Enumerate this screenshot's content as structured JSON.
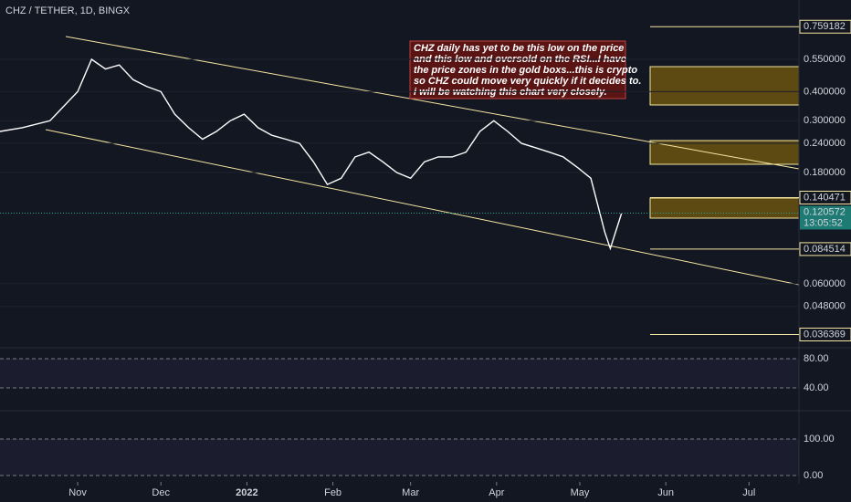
{
  "chart_data": {
    "type": "line",
    "title": "CHZ / TETHER, 1D, BINGX",
    "log_scale": true,
    "color": "#ffffff",
    "x": [
      -28,
      -20,
      -10,
      0,
      5,
      10,
      15,
      20,
      25,
      30,
      35,
      40,
      45,
      50,
      55,
      60,
      65,
      70,
      75,
      80,
      85,
      90,
      95,
      100,
      105,
      110,
      115,
      120,
      125,
      130,
      135,
      140,
      145,
      150,
      155,
      160,
      165,
      170,
      175,
      180,
      185,
      190,
      192,
      196
    ],
    "values": [
      0.27,
      0.28,
      0.3,
      0.4,
      0.55,
      0.5,
      0.52,
      0.45,
      0.42,
      0.4,
      0.32,
      0.28,
      0.25,
      0.27,
      0.3,
      0.32,
      0.28,
      0.26,
      0.25,
      0.24,
      0.2,
      0.16,
      0.17,
      0.21,
      0.22,
      0.2,
      0.18,
      0.17,
      0.2,
      0.21,
      0.21,
      0.22,
      0.27,
      0.3,
      0.27,
      0.24,
      0.23,
      0.22,
      0.21,
      0.19,
      0.17,
      0.1,
      0.085,
      0.12
    ],
    "xlim": [
      -28,
      260
    ],
    "xticks": [
      {
        "value": 0,
        "label": "Nov"
      },
      {
        "value": 30,
        "label": "Dec"
      },
      {
        "value": 61,
        "label": "2022"
      },
      {
        "value": 92,
        "label": "Feb"
      },
      {
        "value": 120,
        "label": "Mar"
      },
      {
        "value": 151,
        "label": "Apr"
      },
      {
        "value": 181,
        "label": "May"
      },
      {
        "value": 212,
        "label": "Jun"
      },
      {
        "value": 242,
        "label": "Jul"
      }
    ],
    "ylim": [
      0.0322,
      0.988
    ],
    "yticks": [
      {
        "value": 0.55,
        "label": "0.550000"
      },
      {
        "value": 0.4,
        "label": "0.400000"
      },
      {
        "value": 0.3,
        "label": "0.300000"
      },
      {
        "value": 0.24,
        "label": "0.240000"
      },
      {
        "value": 0.18,
        "label": "0.180000"
      },
      {
        "value": 0.06,
        "label": "0.060000"
      },
      {
        "value": 0.048,
        "label": "0.048000"
      }
    ],
    "levels": [
      {
        "value": 0.759182,
        "label": "0.759182"
      },
      {
        "value": 0.140471,
        "label": "0.140471"
      },
      {
        "value": 0.084514,
        "label": "0.084514"
      },
      {
        "value": 0.036369,
        "label": "0.036369"
      }
    ],
    "current": {
      "value": 0.120572,
      "label": "0.120572",
      "timer": "13:05:52"
    },
    "annotation": [
      "CHZ daily has yet to be this low on the price",
      "and this low and oversold on the RSI...I have",
      "the price zones in the gold boxs...this is crypto",
      "so CHZ could move very quickly if it decides to.",
      "i will be watching this chart very closely."
    ],
    "rsi_panel": {
      "ylim": [
        15,
        92.5
      ],
      "yticks": [
        {
          "value": 80,
          "label": "80.00"
        },
        {
          "value": 40,
          "label": "40.00"
        }
      ]
    },
    "stoch_panel": {
      "ylim": [
        -22.5,
        165
      ],
      "yticks": [
        {
          "value": 100,
          "label": "100.00"
        },
        {
          "value": 0,
          "label": "0.00"
        }
      ]
    }
  }
}
